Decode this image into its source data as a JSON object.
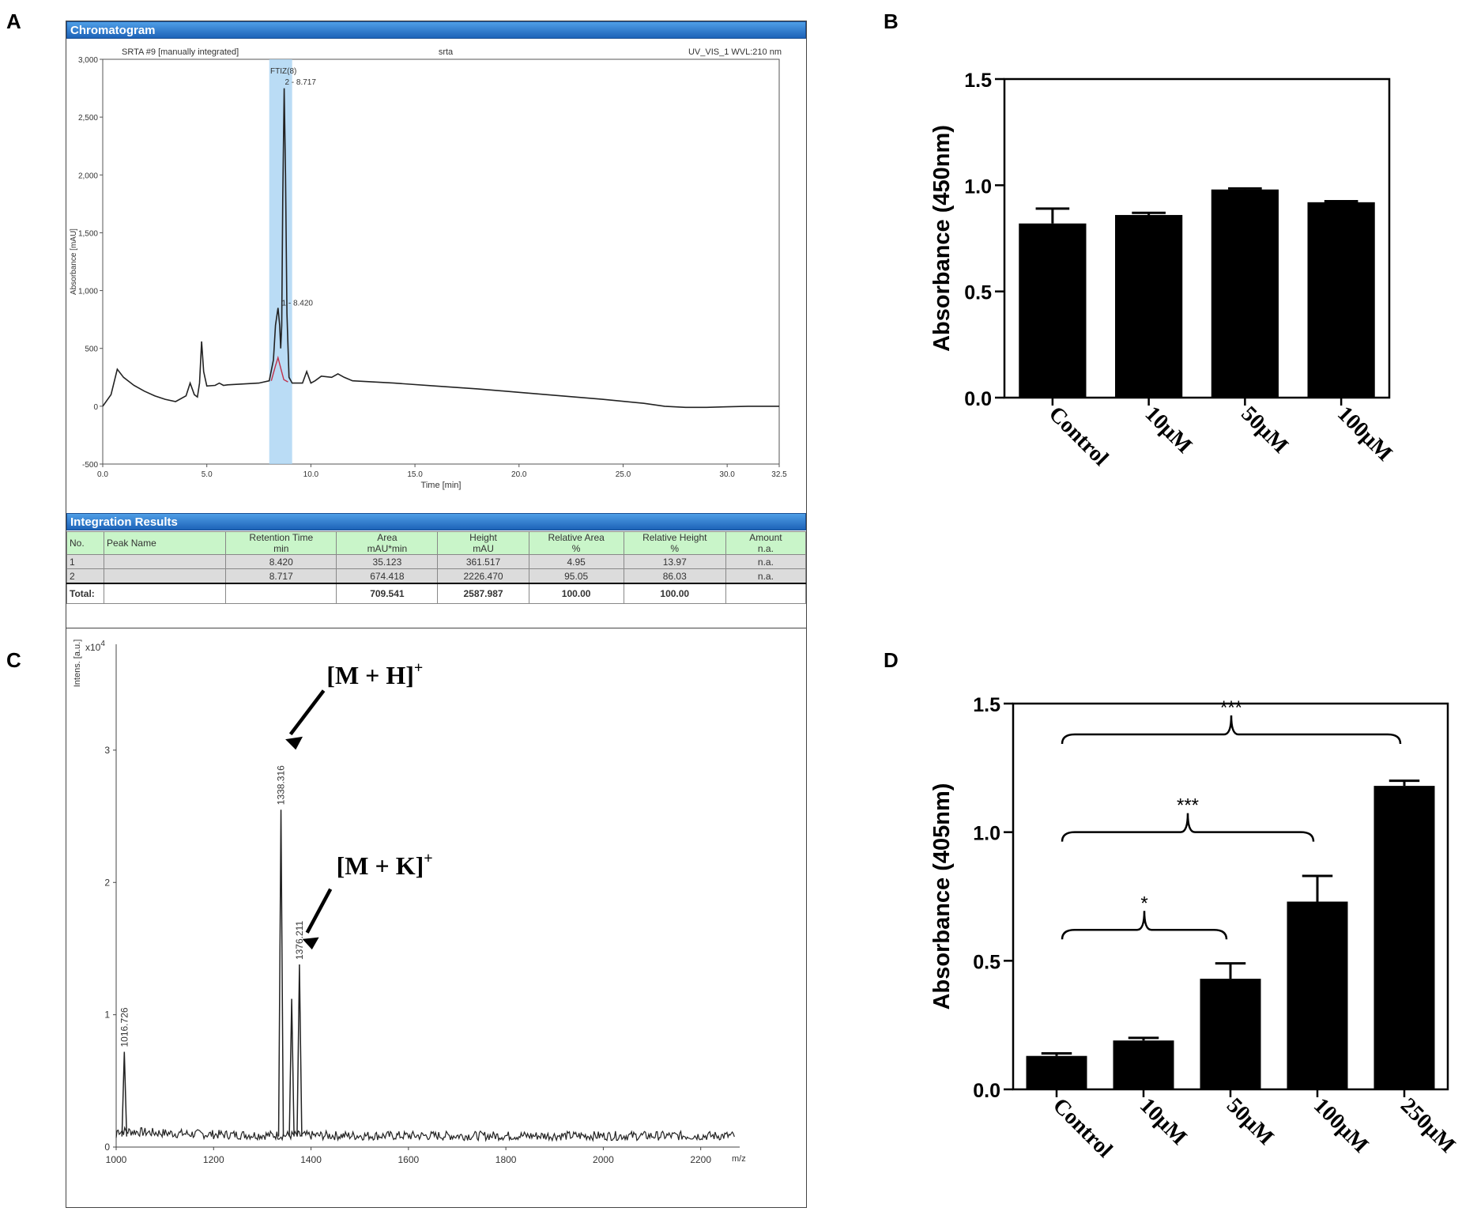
{
  "labels": {
    "a": "A",
    "b": "B",
    "c": "C",
    "d": "D"
  },
  "panel_a": {
    "header": "Chromatogram",
    "info_left": "SRTA #9 [manually integrated]",
    "info_center": "srta",
    "info_right": "UV_VIS_1 WVL:210 nm",
    "peak_band_label": "FTIZ(8)",
    "peak2_label": "2 - 8.717",
    "peak1_label": "1 - 8.420",
    "results_header": "Integration Results",
    "table": {
      "headers": [
        {
          "l1": "No.",
          "l2": ""
        },
        {
          "l1": "Peak Name",
          "l2": ""
        },
        {
          "l1": "Retention Time",
          "l2": "min"
        },
        {
          "l1": "Area",
          "l2": "mAU*min"
        },
        {
          "l1": "Height",
          "l2": "mAU"
        },
        {
          "l1": "Relative Area",
          "l2": "%"
        },
        {
          "l1": "Relative Height",
          "l2": "%"
        },
        {
          "l1": "Amount",
          "l2": "n.a."
        }
      ],
      "rows": [
        [
          "1",
          "",
          "8.420",
          "35.123",
          "361.517",
          "4.95",
          "13.97",
          "n.a."
        ],
        [
          "2",
          "",
          "8.717",
          "674.418",
          "2226.470",
          "95.05",
          "86.03",
          "n.a."
        ]
      ],
      "total": [
        "Total:",
        "",
        "",
        "709.541",
        "2587.987",
        "100.00",
        "100.00",
        ""
      ]
    }
  },
  "chart_data": [
    {
      "id": "A",
      "type": "line",
      "title": "",
      "xlabel": "Time [min]",
      "ylabel": "Absorbance [mAU]",
      "xlim": [
        0,
        32.5
      ],
      "ylim": [
        -500,
        3000
      ],
      "xticks": [
        "0.0",
        "5.0",
        "10.0",
        "15.0",
        "20.0",
        "25.0",
        "30.0",
        "32.5"
      ],
      "yticks": [
        "-500",
        "0",
        "500",
        "1,000",
        "1,500",
        "2,000",
        "2,500",
        "3,000"
      ],
      "highlight_band": [
        8.0,
        9.1
      ],
      "series": [
        {
          "name": "chromatogram",
          "color": "#222222",
          "x": [
            0,
            0.4,
            0.7,
            1.0,
            1.5,
            2.0,
            2.5,
            3.0,
            3.5,
            4.0,
            4.2,
            4.4,
            4.55,
            4.65,
            4.75,
            4.85,
            5.0,
            5.4,
            5.6,
            5.8,
            6.0,
            6.5,
            7.0,
            7.5,
            8.0,
            8.2,
            8.3,
            8.42,
            8.5,
            8.55,
            8.6,
            8.65,
            8.717,
            8.78,
            8.85,
            8.95,
            9.1,
            9.3,
            9.6,
            9.8,
            10.0,
            10.2,
            10.5,
            11.0,
            11.3,
            11.6,
            12.0,
            14,
            16,
            18,
            20,
            22,
            24,
            26,
            27,
            28,
            29,
            30,
            31,
            32,
            32.5
          ],
          "y": [
            0,
            100,
            320,
            250,
            180,
            130,
            90,
            60,
            40,
            90,
            200,
            100,
            80,
            200,
            560,
            300,
            175,
            180,
            200,
            180,
            185,
            190,
            195,
            200,
            220,
            400,
            700,
            850,
            700,
            500,
            700,
            1800,
            2750,
            2000,
            800,
            250,
            200,
            200,
            200,
            300,
            200,
            220,
            260,
            250,
            280,
            250,
            220,
            200,
            175,
            150,
            120,
            90,
            60,
            25,
            0,
            -10,
            -10,
            -5,
            0,
            0,
            0
          ]
        }
      ],
      "annotations": [
        "1 - 8.420",
        "2 - 8.717",
        "FTIZ(8)"
      ]
    },
    {
      "id": "B",
      "type": "bar",
      "title": "",
      "xlabel": "",
      "ylabel": "Absorbance (450nm)",
      "ylim": [
        0,
        1.5
      ],
      "yticks": [
        "0.0",
        "0.5",
        "1.0",
        "1.5"
      ],
      "categories": [
        "Control",
        "10μM",
        "50μM",
        "100μM"
      ],
      "values": [
        0.82,
        0.86,
        0.98,
        0.92
      ],
      "errors": [
        0.07,
        0.01,
        0.005,
        0.005
      ]
    },
    {
      "id": "C",
      "type": "line",
      "title": "",
      "xlabel": "m/z",
      "ylabel": "Intens. [a.u.]",
      "y_multiplier": "x10",
      "y_exponent": "4",
      "xlim": [
        1000,
        2280
      ],
      "ylim": [
        0,
        3.8
      ],
      "xticks": [
        "1000",
        "1200",
        "1400",
        "1600",
        "1800",
        "2000",
        "2200"
      ],
      "yticks": [
        "0",
        "1",
        "2",
        "3"
      ],
      "peaks": [
        {
          "mz": 1016.726,
          "intensity": 0.72,
          "label": "1016.726"
        },
        {
          "mz": 1338.316,
          "intensity": 2.55,
          "label": "1338.316"
        },
        {
          "mz": 1360.3,
          "intensity": 1.12,
          "label": ""
        },
        {
          "mz": 1376.211,
          "intensity": 1.38,
          "label": "1376.211"
        }
      ],
      "annotations": [
        {
          "text": "[M + H]",
          "sup": "+"
        },
        {
          "text": "[M + K]",
          "sup": "+"
        }
      ]
    },
    {
      "id": "D",
      "type": "bar",
      "title": "",
      "xlabel": "",
      "ylabel": "Absorbance (405nm)",
      "ylim": [
        0,
        1.5
      ],
      "yticks": [
        "0.0",
        "0.5",
        "1.0",
        "1.5"
      ],
      "categories": [
        "Control",
        "10μM",
        "50μM",
        "100μM",
        "250μM"
      ],
      "values": [
        0.13,
        0.19,
        0.43,
        0.73,
        1.18
      ],
      "errors": [
        0.01,
        0.01,
        0.06,
        0.1,
        0.02
      ],
      "significance": [
        {
          "from": 0,
          "to": 2,
          "label": "*"
        },
        {
          "from": 0,
          "to": 3,
          "label": "***"
        },
        {
          "from": 0,
          "to": 4,
          "label": "***"
        }
      ]
    }
  ]
}
